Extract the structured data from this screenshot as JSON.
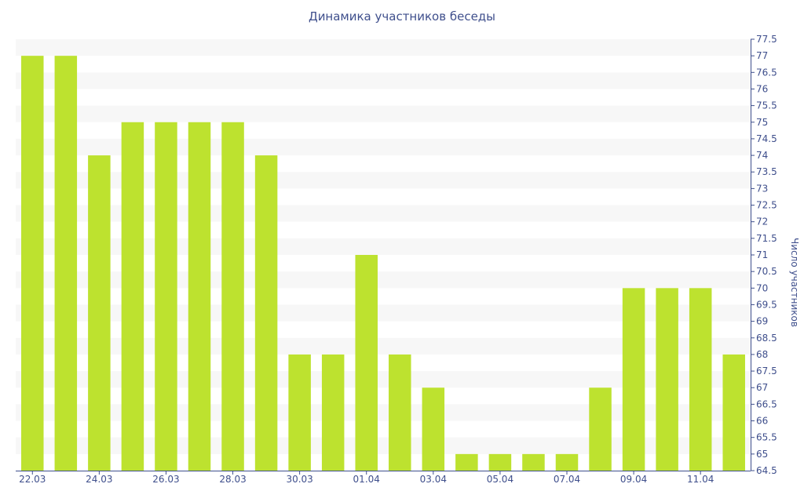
{
  "chart_data": {
    "type": "bar",
    "title": "Динамика участников беседы",
    "xlabel": "",
    "ylabel": "Число участников",
    "ylim": [
      64.5,
      77.5
    ],
    "y_tick_step": 0.5,
    "y_axis_side": "right",
    "grid": "horizontal bands",
    "categories": [
      "22.03",
      "23.03",
      "24.03",
      "25.03",
      "26.03",
      "27.03",
      "28.03",
      "29.03",
      "30.03",
      "31.03",
      "01.04",
      "02.04",
      "03.04",
      "04.04",
      "05.04",
      "06.04",
      "07.04",
      "08.04",
      "09.04",
      "10.04",
      "11.04",
      "12.04"
    ],
    "x_tick_labels": [
      "22.03",
      "24.03",
      "26.03",
      "28.03",
      "30.03",
      "01.04",
      "03.04",
      "05.04",
      "07.04",
      "09.04",
      "11.04"
    ],
    "values": [
      77,
      77,
      74,
      75,
      75,
      75,
      75,
      74,
      68,
      68,
      71,
      68,
      67,
      65,
      65,
      65,
      65,
      67,
      70,
      70,
      70,
      68
    ]
  },
  "colors": {
    "bar": "#bde22f",
    "band": "#f7f7f7",
    "axis": "#3f4f8c",
    "text": "#3f4f8c"
  }
}
